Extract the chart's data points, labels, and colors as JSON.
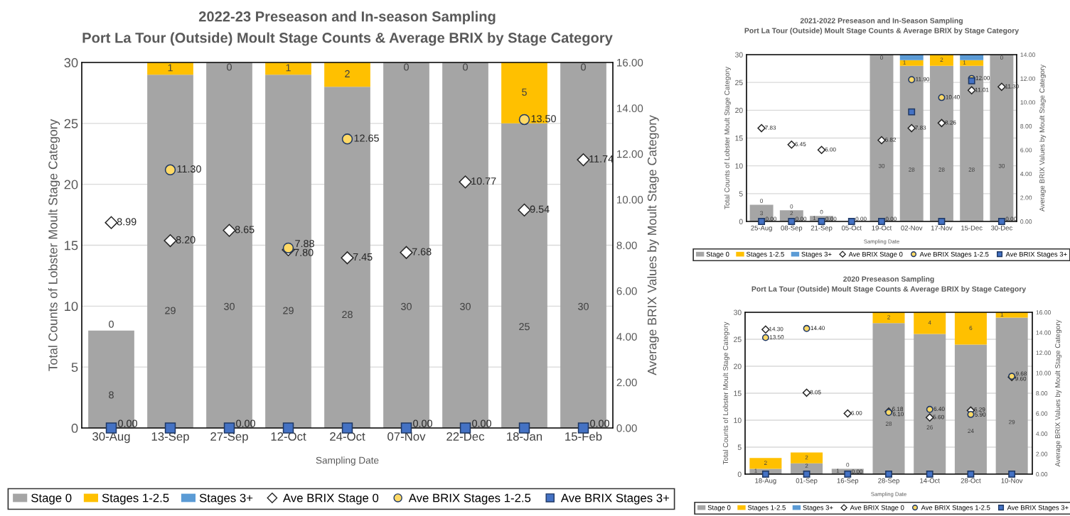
{
  "chart_data": [
    {
      "type": "bar",
      "title": "2022-23 Preseason and In-season Sampling",
      "subtitle": "Port La Tour (Outside) Moult Stage Counts & Average BRIX by Stage Category",
      "xlabel": "Sampling Date",
      "ylabel": "Total Counts of Lobster Moult Stage Category",
      "y2label": "Average BRIX Values by Moult Stage Category",
      "categories": [
        "30-Aug",
        "13-Sep",
        "27-Sep",
        "12-Oct",
        "24-Oct",
        "07-Nov",
        "22-Dec",
        "18-Jan",
        "15-Feb"
      ],
      "stacked": true,
      "grid": "y",
      "legend": "bottom",
      "ylim": [
        0,
        30
      ],
      "yticks": [
        0,
        5,
        10,
        15,
        20,
        25,
        30
      ],
      "y2lim": [
        0,
        16
      ],
      "y2ticks": [
        {
          "value": 0,
          "label": "0.00"
        },
        {
          "value": 2,
          "label": "2.00"
        },
        {
          "value": 4,
          "label": "4.00"
        },
        {
          "value": 6,
          "label": "6.00"
        },
        {
          "value": 8,
          "label": "8.00"
        },
        {
          "value": 10,
          "label": "10.00"
        },
        {
          "value": 12,
          "label": "12.00"
        },
        {
          "value": 14,
          "label": "14.00"
        },
        {
          "value": 16,
          "label": "16.00"
        }
      ],
      "series": [
        {
          "name": "Stage 0",
          "type": "bar",
          "color": "#a5a5a5",
          "values": [
            8,
            29,
            30,
            29,
            28,
            30,
            30,
            25,
            30
          ],
          "value_labels": [
            "8",
            "29",
            "30",
            "29",
            "28",
            "30",
            "30",
            "25",
            "30"
          ]
        },
        {
          "name": "Stages 1-2.5",
          "type": "bar",
          "color": "#ffc000",
          "values": [
            0,
            1,
            0,
            1,
            2,
            0,
            0,
            5,
            0
          ],
          "value_labels": [
            "0",
            "1",
            "0",
            "1",
            "2",
            "0",
            "0",
            "5",
            "0"
          ]
        },
        {
          "name": "Stages 3+",
          "type": "bar",
          "color": "#5b9bd5",
          "values": [
            0,
            0,
            0,
            0,
            0,
            0,
            0,
            0,
            0
          ]
        },
        {
          "name": "Ave BRIX Stage 0",
          "type": "scatter",
          "axis": "y2",
          "marker": "diamond",
          "color": "#ffffff",
          "values": [
            8.99,
            8.2,
            8.65,
            7.8,
            7.45,
            7.68,
            10.77,
            9.54,
            11.74
          ],
          "value_labels": [
            "8.99",
            "8.20",
            "8.65",
            "7.80",
            "7.45",
            "7.68",
            "10.77",
            "9.54",
            "11.74"
          ]
        },
        {
          "name": "Ave BRIX Stages 1-2.5",
          "type": "scatter",
          "axis": "y2",
          "marker": "circle",
          "color": "#ffd966",
          "values": [
            null,
            11.3,
            null,
            7.88,
            12.65,
            null,
            null,
            13.5,
            null
          ],
          "value_labels": [
            null,
            "11.30",
            null,
            "7.88",
            "12.65",
            null,
            null,
            "13.50",
            null
          ]
        },
        {
          "name": "Ave BRIX Stages 3+",
          "type": "scatter",
          "axis": "y2",
          "marker": "square",
          "color": "#4472c4",
          "values": [
            0,
            0,
            0,
            0,
            0,
            0,
            0,
            0,
            0
          ],
          "value_labels": [
            "0.00",
            null,
            "0.00",
            null,
            null,
            "0.00",
            "0.00",
            null,
            "0.00"
          ]
        }
      ]
    },
    {
      "type": "bar",
      "title": "2021-2022 Preseason and In-Season Sampling",
      "subtitle": "Port La Tour (Outside) Moult Stage Counts & Average BRIX by Stage Category",
      "xlabel": "Sampling Date",
      "ylabel": "Total Counts of Lobster Moult Stage Category",
      "y2label": "Average BRIX Values by Moult Stage Category",
      "categories": [
        "25-Aug",
        "08-Sep",
        "21-Sep",
        "05-Oct",
        "19-Oct",
        "02-Nov",
        "17-Nov",
        "15-Dec",
        "30-Dec"
      ],
      "stacked": true,
      "grid": "y",
      "legend": "bottom",
      "ylim": [
        0,
        30
      ],
      "yticks": [
        0,
        5,
        10,
        15,
        20,
        25,
        30
      ],
      "y2lim": [
        0,
        14
      ],
      "y2ticks": [
        {
          "value": 0,
          "label": "0.00"
        },
        {
          "value": 2,
          "label": "2.00"
        },
        {
          "value": 4,
          "label": "4.00"
        },
        {
          "value": 6,
          "label": "6.00"
        },
        {
          "value": 8,
          "label": "8.00"
        },
        {
          "value": 10,
          "label": "10.00"
        },
        {
          "value": 12,
          "label": "12.00"
        },
        {
          "value": 14,
          "label": "14.00"
        }
      ],
      "series": [
        {
          "name": "Stage 0",
          "type": "bar",
          "color": "#a5a5a5",
          "values": [
            3,
            2,
            1,
            0,
            30,
            28,
            28,
            28,
            30
          ],
          "value_labels": [
            "3",
            "2",
            "1",
            null,
            "30",
            "28",
            "28",
            "28",
            "30"
          ]
        },
        {
          "name": "Stages 1-2.5",
          "type": "bar",
          "color": "#ffc000",
          "values": [
            0,
            0,
            0,
            0,
            0,
            1,
            2,
            1,
            0
          ],
          "value_labels": [
            "0",
            "0",
            "0",
            null,
            "0",
            "1",
            "2",
            "1",
            "0"
          ]
        },
        {
          "name": "Stages 3+",
          "type": "bar",
          "color": "#5b9bd5",
          "values": [
            0,
            0,
            0,
            0,
            0,
            1,
            0,
            1,
            0
          ]
        },
        {
          "name": "Ave BRIX Stage 0",
          "type": "scatter",
          "axis": "y2",
          "marker": "diamond",
          "color": "#ffffff",
          "values": [
            7.83,
            6.45,
            6.0,
            null,
            6.82,
            7.83,
            8.26,
            11.01,
            11.3
          ],
          "value_labels": [
            "7.83",
            "6.45",
            "6.00",
            null,
            "6.82",
            "7.83",
            "8.26",
            "11.01",
            "11.30"
          ]
        },
        {
          "name": "Ave BRIX Stages 1-2.5",
          "type": "scatter",
          "axis": "y2",
          "marker": "circle",
          "color": "#ffd966",
          "values": [
            null,
            null,
            null,
            null,
            null,
            11.9,
            10.4,
            12.0,
            null
          ],
          "value_labels": [
            null,
            null,
            null,
            null,
            null,
            "11.90",
            "10.40",
            "12.00",
            null
          ]
        },
        {
          "name": "Ave BRIX Stages 3+",
          "type": "scatter",
          "axis": "y2",
          "marker": "square",
          "color": "#4472c4",
          "values": [
            0,
            0,
            0,
            0,
            0,
            9.2,
            0,
            11.8,
            0
          ],
          "value_labels": [
            "0.00",
            "0.00",
            "0.00",
            "0.00",
            "0.00",
            null,
            null,
            null,
            "0.00"
          ]
        }
      ]
    },
    {
      "type": "bar",
      "title": "2020 Preseason Sampling",
      "subtitle": "Port La Tour (Outside) Moult Stage Counts & Average BRIX by Stage Category",
      "xlabel": "Sampling Date",
      "ylabel": "Total Counts of Lobster Moult Stage Category",
      "y2label": "Average BRIX Values by Moult Stage Category",
      "categories": [
        "18-Aug",
        "01-Sep",
        "16-Sep",
        "28-Sep",
        "14-Oct",
        "28-Oct",
        "10-Nov"
      ],
      "stacked": true,
      "grid": "y",
      "legend": "bottom",
      "ylim": [
        0,
        30
      ],
      "yticks": [
        0,
        5,
        10,
        15,
        20,
        25,
        30
      ],
      "y2lim": [
        0,
        16
      ],
      "y2ticks": [
        {
          "value": 0,
          "label": "0.00"
        },
        {
          "value": 2,
          "label": "2.00"
        },
        {
          "value": 4,
          "label": "4.00"
        },
        {
          "value": 6,
          "label": "6.00"
        },
        {
          "value": 8,
          "label": "8.00"
        },
        {
          "value": 10,
          "label": "10.00"
        },
        {
          "value": 12,
          "label": "12.00"
        },
        {
          "value": 14,
          "label": "14.00"
        },
        {
          "value": 16,
          "label": "16.00"
        }
      ],
      "series": [
        {
          "name": "Stage 0",
          "type": "bar",
          "color": "#a5a5a5",
          "values": [
            1,
            2,
            1,
            28,
            26,
            24,
            29
          ],
          "value_labels": [
            "1",
            "2",
            "1",
            "28",
            "26",
            "24",
            "29"
          ]
        },
        {
          "name": "Stages 1-2.5",
          "type": "bar",
          "color": "#ffc000",
          "values": [
            2,
            2,
            0,
            2,
            4,
            6,
            1
          ],
          "value_labels": [
            "2",
            "2",
            "0",
            "2",
            "4",
            "6",
            "1"
          ]
        },
        {
          "name": "Stages 3+",
          "type": "bar",
          "color": "#5b9bd5",
          "values": [
            0,
            0,
            0,
            0,
            0,
            0,
            0
          ]
        },
        {
          "name": "Ave BRIX Stage 0",
          "type": "scatter",
          "axis": "y2",
          "marker": "diamond",
          "color": "#ffffff",
          "values": [
            14.3,
            8.05,
            6.0,
            6.18,
            5.6,
            6.29,
            9.6
          ],
          "value_labels": [
            "14.30",
            "8.05",
            "6.00",
            "6.18",
            "5.60",
            "6.29",
            "9.60"
          ]
        },
        {
          "name": "Ave BRIX Stages 1-2.5",
          "type": "scatter",
          "axis": "y2",
          "marker": "circle",
          "color": "#ffd966",
          "values": [
            13.5,
            14.4,
            null,
            6.1,
            6.4,
            5.9,
            9.68
          ],
          "value_labels": [
            "13.50",
            "14.40",
            null,
            "6.10",
            "6.40",
            "5.90",
            "9.68"
          ]
        },
        {
          "name": "Ave BRIX Stages 3+",
          "type": "scatter",
          "axis": "y2",
          "marker": "square",
          "color": "#4472c4",
          "values": [
            0,
            0,
            0,
            0,
            0,
            0,
            0
          ],
          "value_labels": [
            null,
            null,
            "0.00",
            null,
            null,
            null,
            null
          ]
        }
      ]
    }
  ]
}
